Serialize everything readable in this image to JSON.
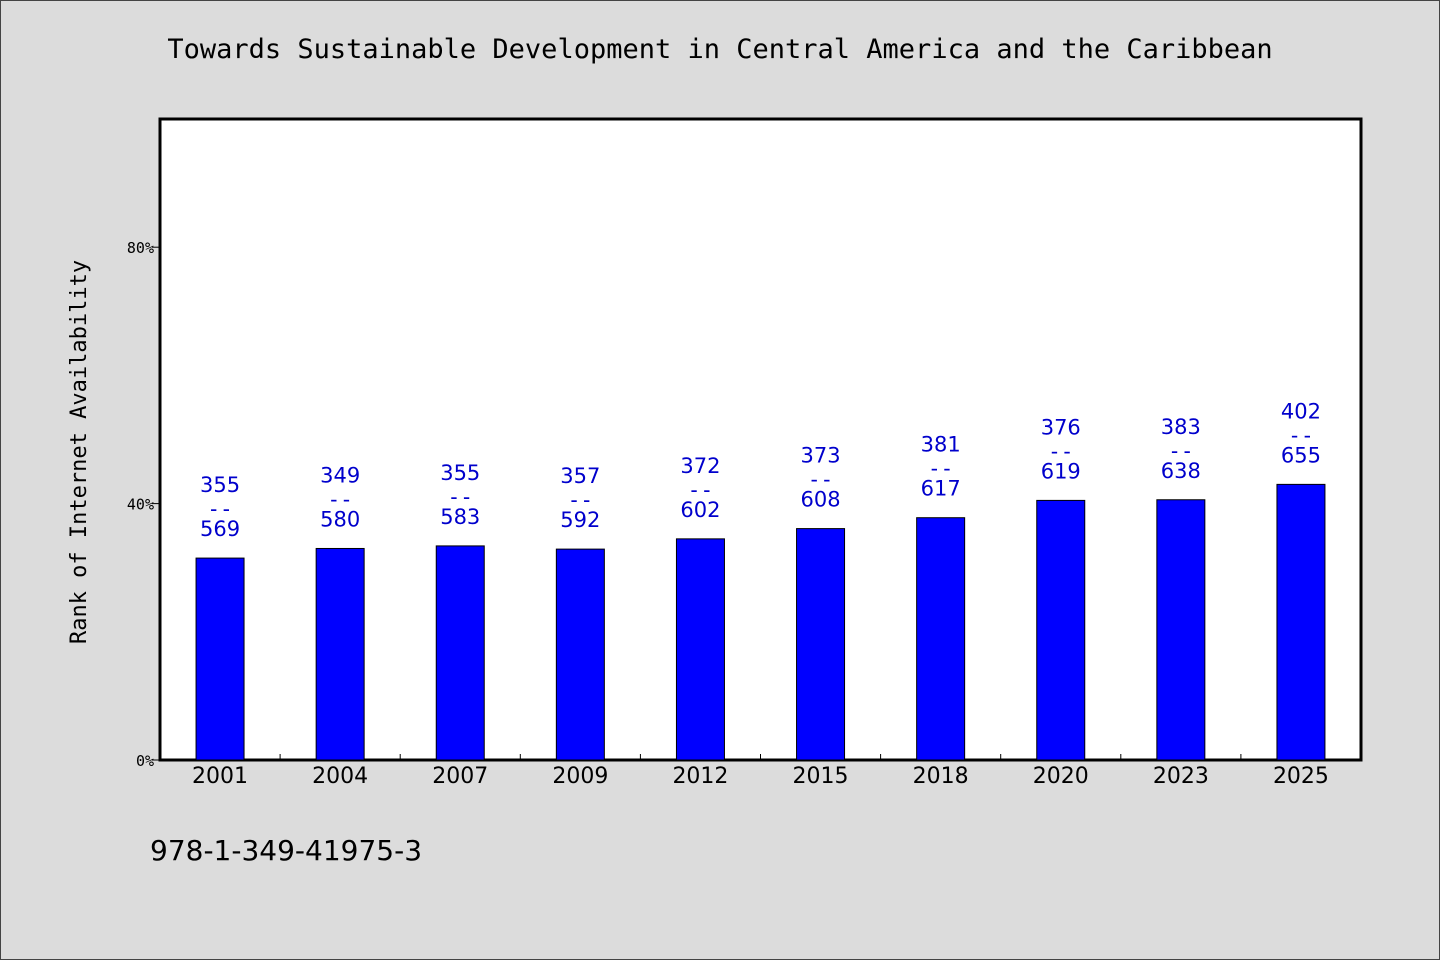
{
  "chart_data": {
    "type": "bar",
    "title": "Towards Sustainable Development in Central America and the Caribbean",
    "xlabel": "",
    "ylabel": "Rank of Internet Availability",
    "categories": [
      "2001",
      "2004",
      "2007",
      "2009",
      "2012",
      "2015",
      "2018",
      "2020",
      "2023",
      "2025"
    ],
    "values": [
      31.5,
      33.0,
      33.4,
      32.9,
      34.5,
      36.1,
      37.8,
      40.5,
      40.6,
      43.0
    ],
    "data_labels": [
      {
        "top": "355",
        "sep": "--",
        "bottom": "569"
      },
      {
        "top": "349",
        "sep": "--",
        "bottom": "580"
      },
      {
        "top": "355",
        "sep": "--",
        "bottom": "583"
      },
      {
        "top": "357",
        "sep": "--",
        "bottom": "592"
      },
      {
        "top": "372",
        "sep": "--",
        "bottom": "602"
      },
      {
        "top": "373",
        "sep": "--",
        "bottom": "608"
      },
      {
        "top": "381",
        "sep": "--",
        "bottom": "617"
      },
      {
        "top": "376",
        "sep": "--",
        "bottom": "619"
      },
      {
        "top": "383",
        "sep": "--",
        "bottom": "638"
      },
      {
        "top": "402",
        "sep": "--",
        "bottom": "655"
      }
    ],
    "ylim": [
      0,
      100
    ],
    "yticks": [
      {
        "value": 0,
        "label": "0%"
      },
      {
        "value": 40,
        "label": "40%"
      },
      {
        "value": 80,
        "label": "80%"
      }
    ],
    "grid": false,
    "legend": "none",
    "colors": {
      "bar": "#0000ff",
      "label": "#0000cc",
      "background": "#dcdcdc",
      "plot_background": "#ffffff"
    }
  },
  "footer": {
    "code": "978-1-349-41975-3"
  }
}
